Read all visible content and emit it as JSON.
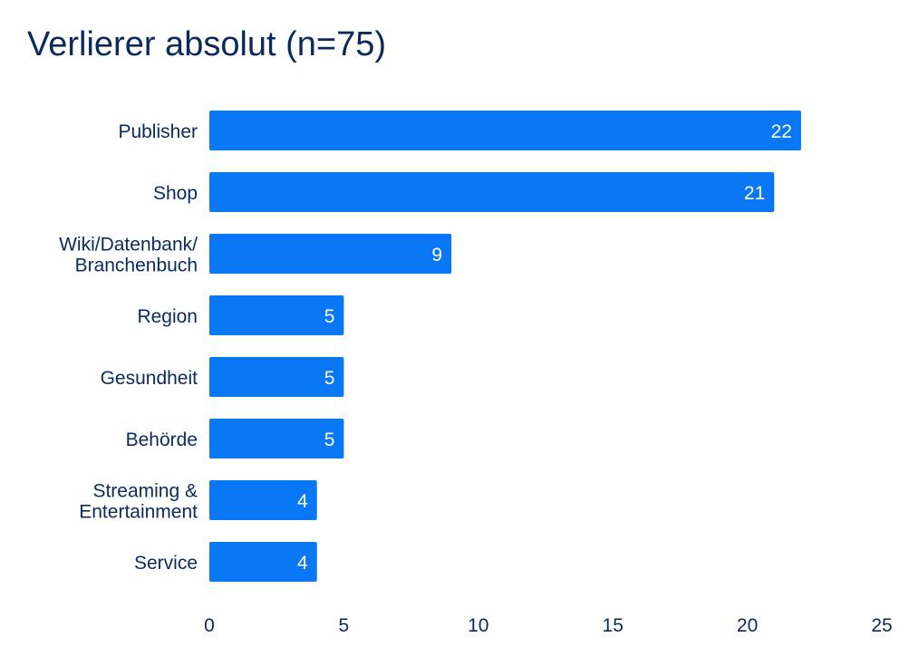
{
  "chart_data": {
    "type": "bar",
    "orientation": "horizontal",
    "title": "Verlierer absolut (n=75)",
    "categories": [
      [
        "Publisher"
      ],
      [
        "Shop"
      ],
      [
        "Wiki/Datenbank/",
        "Branchenbuch"
      ],
      [
        "Region"
      ],
      [
        "Gesundheit"
      ],
      [
        "Behörde"
      ],
      [
        "Streaming &",
        "Entertainment"
      ],
      [
        "Service"
      ]
    ],
    "values": [
      22,
      21,
      9,
      5,
      5,
      5,
      4,
      4
    ],
    "xlim": [
      0,
      25
    ],
    "xticks": [
      0,
      5,
      10,
      15,
      20,
      25
    ],
    "grid": false,
    "bar_color": "#0a78f5",
    "text_color": "#0a2a5e",
    "label_color": "#ffffff"
  }
}
